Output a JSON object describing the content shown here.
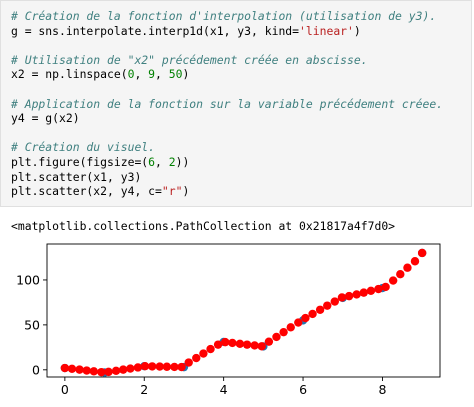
{
  "code_cell": {
    "lines": [
      {
        "kind": "comment",
        "text": "# Création de la fonction d'interpolation (utilisation de y3)."
      },
      {
        "kind": "code",
        "segments": [
          {
            "t": "g = sns.interpolate.interp1d(x1, y3, kind=",
            "c": "plain"
          },
          {
            "t": "'linear'",
            "c": "str"
          },
          {
            "t": ")",
            "c": "plain"
          }
        ]
      },
      {
        "kind": "blank"
      },
      {
        "kind": "comment",
        "text": "# Utilisation de \"x2\" précédement créée en abscisse."
      },
      {
        "kind": "code",
        "segments": [
          {
            "t": "x2 = np.linspace(",
            "c": "plain"
          },
          {
            "t": "0",
            "c": "num"
          },
          {
            "t": ", ",
            "c": "plain"
          },
          {
            "t": "9",
            "c": "num"
          },
          {
            "t": ", ",
            "c": "plain"
          },
          {
            "t": "50",
            "c": "num"
          },
          {
            "t": ")",
            "c": "plain"
          }
        ]
      },
      {
        "kind": "blank"
      },
      {
        "kind": "comment",
        "text": "# Application de la fonction sur la variable précédement créee."
      },
      {
        "kind": "code",
        "segments": [
          {
            "t": "y4 = g(x2)",
            "c": "plain"
          }
        ]
      },
      {
        "kind": "blank"
      },
      {
        "kind": "comment",
        "text": "# Création du visuel."
      },
      {
        "kind": "code",
        "segments": [
          {
            "t": "plt.figure(figsize=(",
            "c": "plain"
          },
          {
            "t": "6",
            "c": "num"
          },
          {
            "t": ", ",
            "c": "plain"
          },
          {
            "t": "2",
            "c": "num"
          },
          {
            "t": "))",
            "c": "plain"
          }
        ]
      },
      {
        "kind": "code",
        "segments": [
          {
            "t": "plt.scatter(x1, y3)",
            "c": "plain"
          }
        ]
      },
      {
        "kind": "code",
        "segments": [
          {
            "t": "plt.scatter(x2, y4, c=",
            "c": "plain"
          },
          {
            "t": "\"r\"",
            "c": "str"
          },
          {
            "t": ")",
            "c": "plain"
          }
        ]
      }
    ]
  },
  "output_text": "<matplotlib.collections.PathCollection at 0x21817a4f7d0>",
  "colors": {
    "series_blue": "#1f77b4",
    "series_red": "#ff0000",
    "comment": "#408080",
    "string": "#ba2121",
    "number": "#008000"
  },
  "chart_data": {
    "type": "scatter",
    "xlim": [
      -0.45,
      9.45
    ],
    "ylim": [
      -8,
      140
    ],
    "xticks": [
      0,
      2,
      4,
      6,
      8
    ],
    "yticks": [
      0,
      50,
      100
    ],
    "grid": false,
    "series": [
      {
        "color": "#1f77b4",
        "x": [
          0,
          1,
          2,
          3,
          4,
          5,
          6,
          7,
          8,
          9
        ],
        "y": [
          2,
          -3,
          4,
          3,
          31,
          26,
          55,
          80,
          91,
          130
        ]
      },
      {
        "color": "#ff0000",
        "x": [
          0.0,
          0.18,
          0.37,
          0.55,
          0.73,
          0.92,
          1.1,
          1.29,
          1.47,
          1.65,
          1.84,
          2.02,
          2.2,
          2.39,
          2.57,
          2.76,
          2.94,
          3.12,
          3.31,
          3.49,
          3.67,
          3.86,
          4.04,
          4.22,
          4.41,
          4.59,
          4.78,
          4.96,
          5.14,
          5.33,
          5.51,
          5.69,
          5.88,
          6.06,
          6.24,
          6.43,
          6.61,
          6.8,
          6.98,
          7.16,
          7.35,
          7.53,
          7.71,
          7.9,
          8.08,
          8.27,
          8.45,
          8.63,
          8.82,
          9.0
        ],
        "y": [
          2.0,
          1.1,
          0.2,
          -0.8,
          -1.7,
          -2.6,
          -2.3,
          -1.1,
          0.2,
          1.4,
          2.6,
          4.0,
          3.8,
          3.6,
          3.4,
          3.2,
          3.1,
          8.1,
          13.1,
          18.1,
          23.1,
          28.0,
          30.8,
          29.9,
          28.9,
          28.0,
          27.1,
          26.2,
          31.3,
          36.6,
          41.9,
          47.3,
          52.6,
          57.6,
          62.2,
          66.8,
          71.4,
          76.0,
          80.5,
          82.0,
          83.9,
          85.9,
          87.9,
          89.9,
          92.2,
          99.3,
          106.4,
          113.6,
          120.8,
          130.0
        ]
      }
    ]
  }
}
